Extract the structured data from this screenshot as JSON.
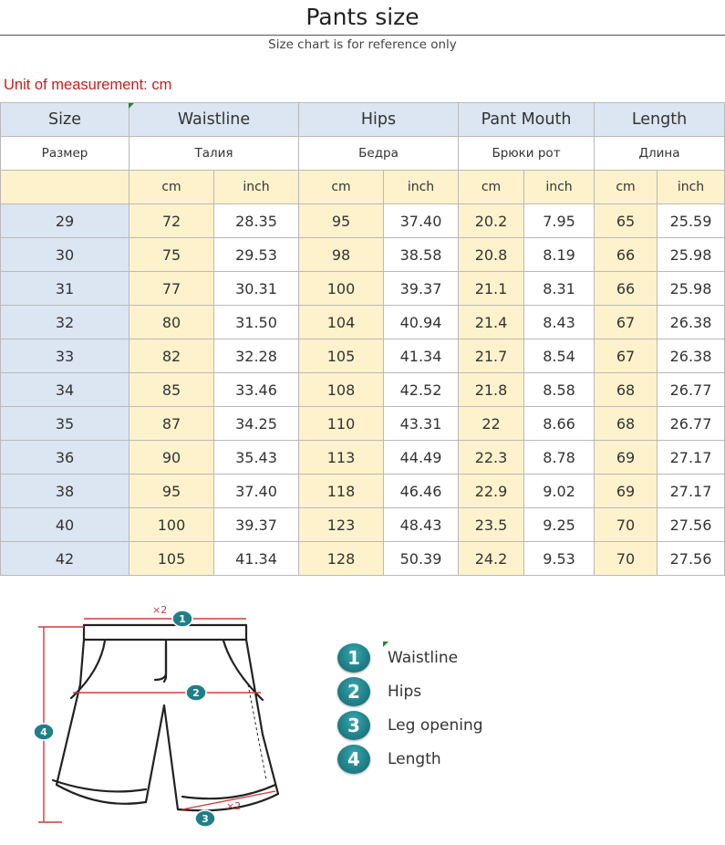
{
  "title": "Pants size",
  "subtitle": "Size chart is for reference only",
  "unit_note": "Unit of measurement: cm",
  "table": {
    "headers": [
      "Size",
      "Waistline",
      "Hips",
      "Pant Mouth",
      "Length"
    ],
    "headers_ru": [
      "Размер",
      "Талия",
      "Бедра",
      "Брюки рот",
      "Длина"
    ],
    "unit_cm": "cm",
    "unit_inch": "inch",
    "rows": [
      [
        "29",
        "72",
        "28.35",
        "95",
        "37.40",
        "20.2",
        "7.95",
        "65",
        "25.59"
      ],
      [
        "30",
        "75",
        "29.53",
        "98",
        "38.58",
        "20.8",
        "8.19",
        "66",
        "25.98"
      ],
      [
        "31",
        "77",
        "30.31",
        "100",
        "39.37",
        "21.1",
        "8.31",
        "66",
        "25.98"
      ],
      [
        "32",
        "80",
        "31.50",
        "104",
        "40.94",
        "21.4",
        "8.43",
        "67",
        "26.38"
      ],
      [
        "33",
        "82",
        "32.28",
        "105",
        "41.34",
        "21.7",
        "8.54",
        "67",
        "26.38"
      ],
      [
        "34",
        "85",
        "33.46",
        "108",
        "42.52",
        "21.8",
        "8.58",
        "68",
        "26.77"
      ],
      [
        "35",
        "87",
        "34.25",
        "110",
        "43.31",
        "22",
        "8.66",
        "68",
        "26.77"
      ],
      [
        "36",
        "90",
        "35.43",
        "113",
        "44.49",
        "22.3",
        "8.78",
        "69",
        "27.17"
      ],
      [
        "38",
        "95",
        "37.40",
        "118",
        "46.46",
        "22.9",
        "9.02",
        "69",
        "27.17"
      ],
      [
        "40",
        "100",
        "39.37",
        "123",
        "48.43",
        "23.5",
        "9.25",
        "70",
        "27.56"
      ],
      [
        "42",
        "105",
        "41.34",
        "128",
        "50.39",
        "24.2",
        "9.53",
        "70",
        "27.56"
      ]
    ]
  },
  "diagram": {
    "markers": [
      "1",
      "2",
      "3",
      "4"
    ],
    "multiplier": "×2"
  },
  "legend": [
    {
      "num": "1",
      "label": "Waistline"
    },
    {
      "num": "2",
      "label": "Hips"
    },
    {
      "num": "3",
      "label": "Leg opening"
    },
    {
      "num": "4",
      "label": "Length"
    }
  ],
  "colors": {
    "header_blue": "#dce5f2",
    "cm_yellow": "#fdf2cc",
    "unit_red": "#c81e1e",
    "badge_teal": "#1f7f88",
    "measure_red": "#d23a3a"
  }
}
